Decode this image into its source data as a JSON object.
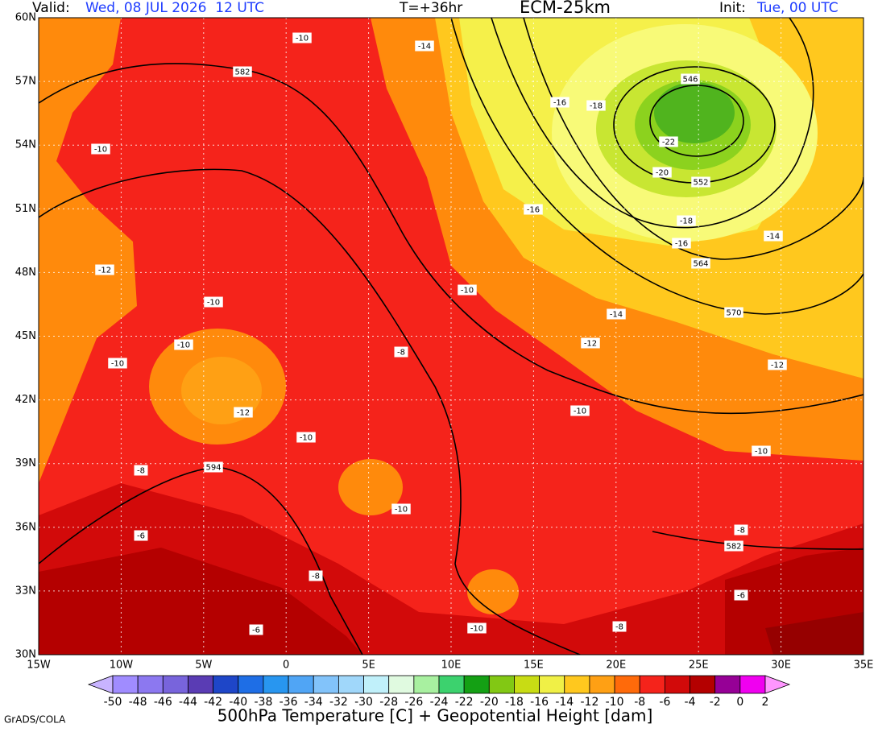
{
  "header": {
    "valid_label": "Valid:",
    "valid_time": "Wed, 08 JUL 2026  12 UTC",
    "forecast_hour": "T=+36hr",
    "model": "ECM-25km",
    "init_label": "Init:",
    "init_time": "Tue, 00 UTC"
  },
  "map": {
    "lon_labels": [
      "15W",
      "10W",
      "5W",
      "0",
      "5E",
      "10E",
      "15E",
      "20E",
      "25E",
      "30E",
      "35E"
    ],
    "lat_labels": [
      "60N",
      "57N",
      "54N",
      "51N",
      "48N",
      "45N",
      "42N",
      "39N",
      "36N",
      "33N",
      "30N"
    ],
    "contour_labels": [
      "-10",
      "-14",
      "582",
      "546",
      "-16",
      "-18",
      "-10",
      "-22",
      "-20",
      "552",
      "-16",
      "-18",
      "-16",
      "-14",
      "564",
      "-12",
      "-10",
      "-10",
      "570",
      "-14",
      "-10",
      "-12",
      "-8",
      "-10",
      "-12",
      "-12",
      "-10",
      "-10",
      "-10",
      "594",
      "-8",
      "-10",
      "-8",
      "-6",
      "582",
      "-8",
      "-6",
      "-6",
      "-10",
      "-8"
    ]
  },
  "colorbar": {
    "ticks": [
      -50,
      -48,
      -46,
      -44,
      -42,
      -40,
      -38,
      -36,
      -34,
      -32,
      -30,
      -28,
      -26,
      -24,
      -22,
      -20,
      -18,
      -16,
      -14,
      -12,
      -10,
      -8,
      -6,
      -4,
      -2,
      0,
      2
    ],
    "colors": [
      "#c8b4ff",
      "#a08cff",
      "#8c78f0",
      "#7864dc",
      "#5a3cb4",
      "#1e46c8",
      "#1e6ee6",
      "#2896f0",
      "#50a5f5",
      "#82c3fa",
      "#a0d7fa",
      "#c0f0fa",
      "#e0fae0",
      "#a8f0a0",
      "#3cd26e",
      "#14a014",
      "#82c814",
      "#c8dc14",
      "#f0f046",
      "#ffc81e",
      "#ffa014",
      "#ff6a0a",
      "#f5231b",
      "#d20a0a",
      "#b40000",
      "#960096",
      "#f000f0",
      "#ff96ff"
    ]
  },
  "footer": {
    "title": "500hPa Temperature [C] + Geopotential Height [dam]",
    "credit": "GrADS/COLA"
  }
}
